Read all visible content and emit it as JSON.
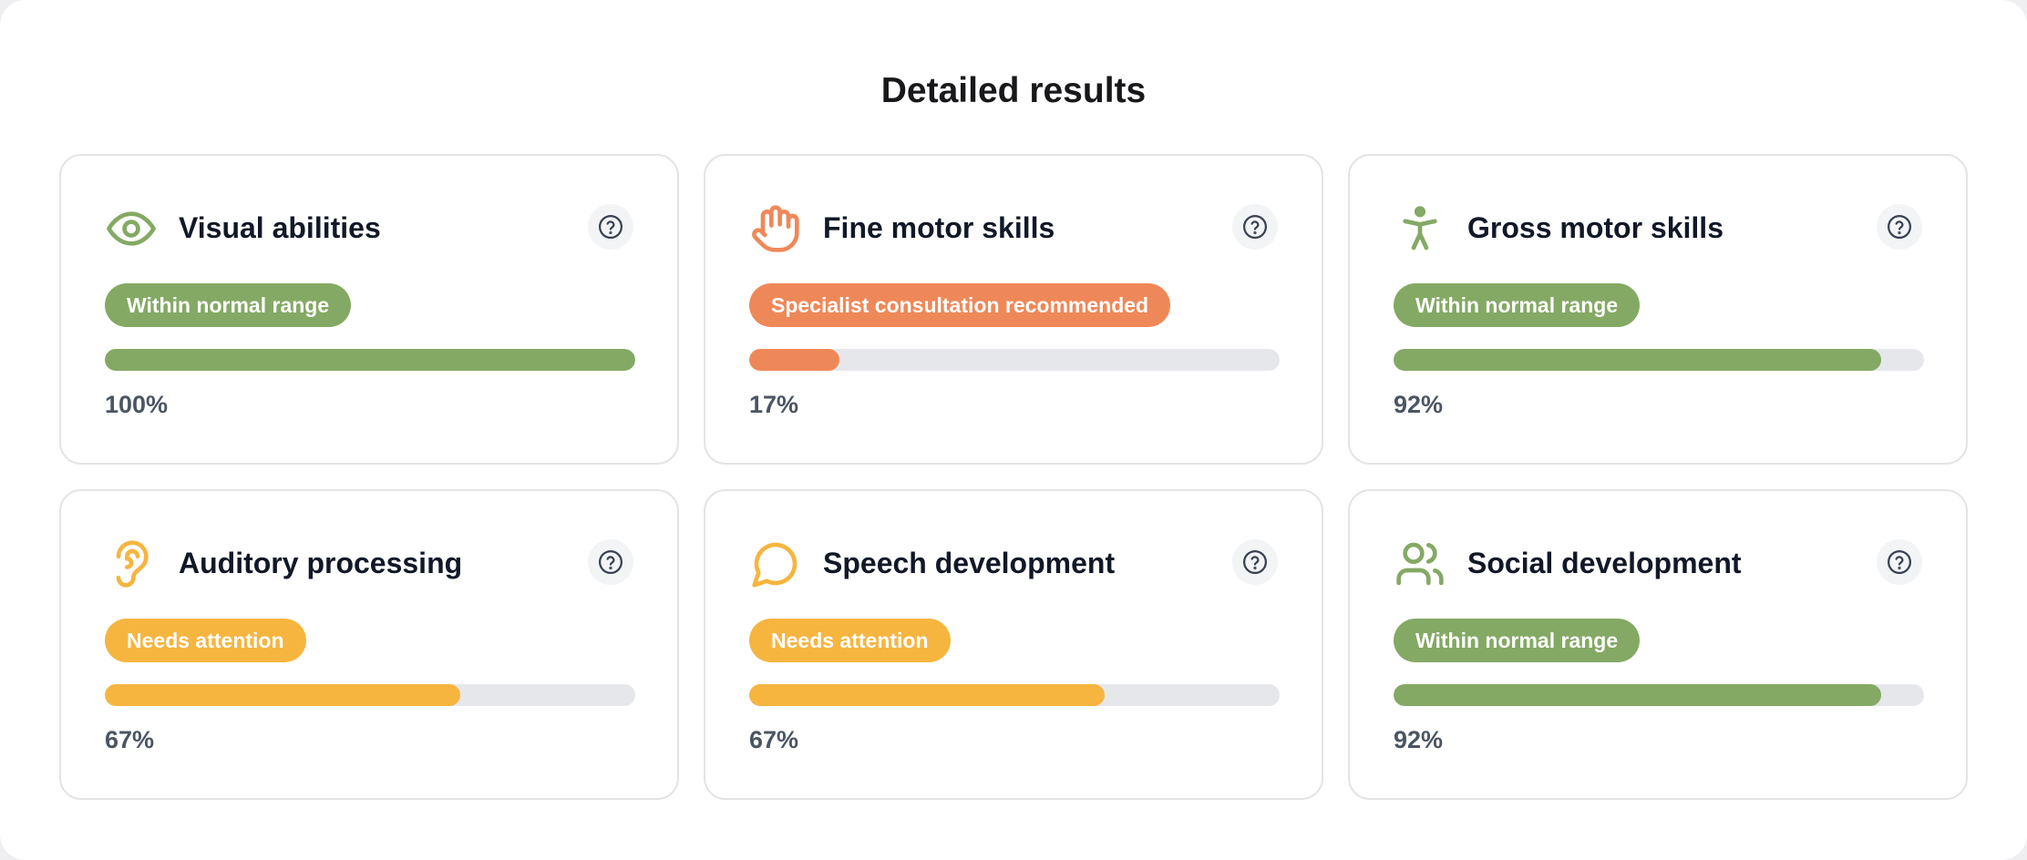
{
  "page": {
    "title": "Detailed results"
  },
  "colors": {
    "green": "#84a964",
    "orange": "#ef8858",
    "yellow": "#f6b53f",
    "track": "#e5e7eb"
  },
  "cards": [
    {
      "title": "Visual abilities",
      "icon": "eye-icon",
      "status": "Within normal range",
      "status_color": "#84a964",
      "percent_label": "100%",
      "progress": 1.0
    },
    {
      "title": "Fine motor skills",
      "icon": "hand-icon",
      "status": "Specialist consultation recommended",
      "status_color": "#ef8858",
      "percent_label": "17%",
      "progress": 0.17
    },
    {
      "title": "Gross motor skills",
      "icon": "person-icon",
      "status": "Within normal range",
      "status_color": "#84a964",
      "percent_label": "92%",
      "progress": 0.92
    },
    {
      "title": "Auditory processing",
      "icon": "ear-icon",
      "status": "Needs attention",
      "status_color": "#f6b53f",
      "percent_label": "67%",
      "progress": 0.67
    },
    {
      "title": "Speech development",
      "icon": "speech-bubble-icon",
      "status": "Needs attention",
      "status_color": "#f6b53f",
      "percent_label": "67%",
      "progress": 0.67
    },
    {
      "title": "Social development",
      "icon": "users-icon",
      "status": "Within normal range",
      "status_color": "#84a964",
      "percent_label": "92%",
      "progress": 0.92
    }
  ]
}
